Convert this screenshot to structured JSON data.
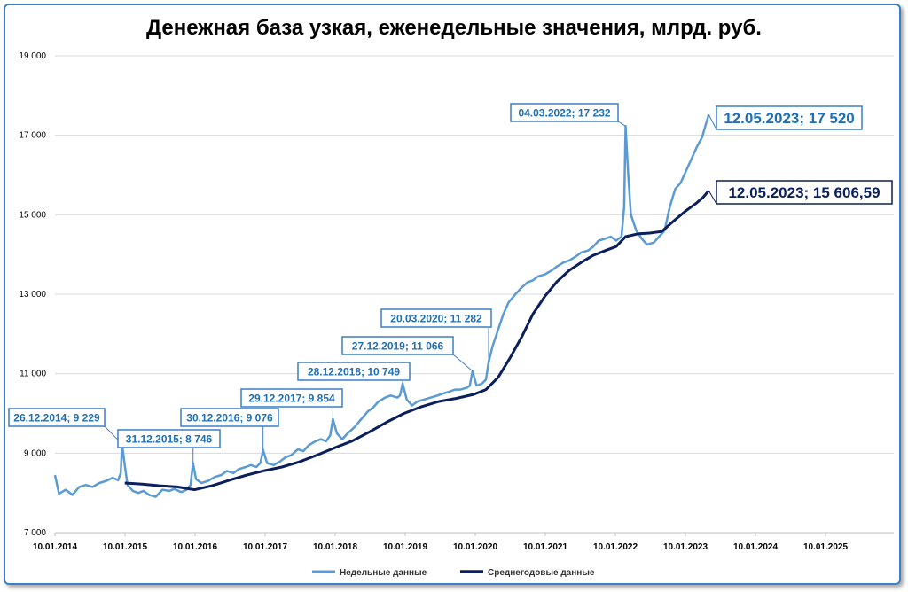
{
  "chart_data": {
    "type": "line",
    "title": "Денежная база узкая, еженедельные значения, млрд. руб.",
    "xlabel": "",
    "ylabel": "",
    "x_ticks": [
      "10.01.2014",
      "10.01.2015",
      "10.01.2016",
      "10.01.2017",
      "10.01.2018",
      "10.01.2019",
      "10.01.2020",
      "10.01.2021",
      "10.01.2022",
      "10.01.2023",
      "10.01.2024",
      "10.01.2025"
    ],
    "y_ticks": [
      "7 000",
      "9 000",
      "11 000",
      "13 000",
      "15 000",
      "17 000",
      "19 000"
    ],
    "ylim": [
      7000,
      19000
    ],
    "xlim": [
      "2014-01-10",
      "2025-12-31"
    ],
    "grid": "horizontal",
    "legend_position": "bottom",
    "series": [
      {
        "name": "Недельные данные",
        "color": "#5b9bd5",
        "points": [
          [
            "2014-01-10",
            8450
          ],
          [
            "2014-01-31",
            7980
          ],
          [
            "2014-03-07",
            8080
          ],
          [
            "2014-04-11",
            7950
          ],
          [
            "2014-05-16",
            8150
          ],
          [
            "2014-06-20",
            8200
          ],
          [
            "2014-07-25",
            8150
          ],
          [
            "2014-08-29",
            8250
          ],
          [
            "2014-10-03",
            8300
          ],
          [
            "2014-11-07",
            8380
          ],
          [
            "2014-12-05",
            8320
          ],
          [
            "2014-12-19",
            8500
          ],
          [
            "2014-12-26",
            9229
          ],
          [
            "2015-01-09",
            8700
          ],
          [
            "2015-01-23",
            8200
          ],
          [
            "2015-02-20",
            8050
          ],
          [
            "2015-03-20",
            8000
          ],
          [
            "2015-04-17",
            8050
          ],
          [
            "2015-05-15",
            7950
          ],
          [
            "2015-06-19",
            7900
          ],
          [
            "2015-07-24",
            8080
          ],
          [
            "2015-08-28",
            8050
          ],
          [
            "2015-09-25",
            8100
          ],
          [
            "2015-10-30",
            8020
          ],
          [
            "2015-11-27",
            8080
          ],
          [
            "2015-12-18",
            8200
          ],
          [
            "2015-12-31",
            8746
          ],
          [
            "2016-01-15",
            8350
          ],
          [
            "2016-02-12",
            8250
          ],
          [
            "2016-03-18",
            8300
          ],
          [
            "2016-04-22",
            8400
          ],
          [
            "2016-05-27",
            8450
          ],
          [
            "2016-06-24",
            8550
          ],
          [
            "2016-07-29",
            8500
          ],
          [
            "2016-08-26",
            8600
          ],
          [
            "2016-09-30",
            8650
          ],
          [
            "2016-10-28",
            8700
          ],
          [
            "2016-11-25",
            8650
          ],
          [
            "2016-12-16",
            8750
          ],
          [
            "2016-12-30",
            9076
          ],
          [
            "2017-01-20",
            8750
          ],
          [
            "2017-02-24",
            8700
          ],
          [
            "2017-03-31",
            8800
          ],
          [
            "2017-04-28",
            8900
          ],
          [
            "2017-05-26",
            8950
          ],
          [
            "2017-06-30",
            9100
          ],
          [
            "2017-07-28",
            9050
          ],
          [
            "2017-08-25",
            9200
          ],
          [
            "2017-09-29",
            9300
          ],
          [
            "2017-10-27",
            9350
          ],
          [
            "2017-11-24",
            9300
          ],
          [
            "2017-12-15",
            9450
          ],
          [
            "2017-12-29",
            9854
          ],
          [
            "2018-01-19",
            9500
          ],
          [
            "2018-02-16",
            9350
          ],
          [
            "2018-03-16",
            9500
          ],
          [
            "2018-04-20",
            9650
          ],
          [
            "2018-05-25",
            9850
          ],
          [
            "2018-06-29",
            10050
          ],
          [
            "2018-07-27",
            10150
          ],
          [
            "2018-08-24",
            10300
          ],
          [
            "2018-09-28",
            10400
          ],
          [
            "2018-10-26",
            10450
          ],
          [
            "2018-11-30",
            10400
          ],
          [
            "2018-12-14",
            10450
          ],
          [
            "2018-12-28",
            10749
          ],
          [
            "2019-01-18",
            10350
          ],
          [
            "2019-02-15",
            10200
          ],
          [
            "2019-03-15",
            10300
          ],
          [
            "2019-04-19",
            10350
          ],
          [
            "2019-05-24",
            10400
          ],
          [
            "2019-06-28",
            10450
          ],
          [
            "2019-07-26",
            10500
          ],
          [
            "2019-08-30",
            10550
          ],
          [
            "2019-09-27",
            10600
          ],
          [
            "2019-10-25",
            10600
          ],
          [
            "2019-11-29",
            10650
          ],
          [
            "2019-12-13",
            10700
          ],
          [
            "2019-12-27",
            11066
          ],
          [
            "2020-01-17",
            10700
          ],
          [
            "2020-02-14",
            10750
          ],
          [
            "2020-03-06",
            10850
          ],
          [
            "2020-03-20",
            11282
          ],
          [
            "2020-04-10",
            11700
          ],
          [
            "2020-05-08",
            12100
          ],
          [
            "2020-06-05",
            12500
          ],
          [
            "2020-07-03",
            12800
          ],
          [
            "2020-08-07",
            13000
          ],
          [
            "2020-09-04",
            13150
          ],
          [
            "2020-10-09",
            13300
          ],
          [
            "2020-11-06",
            13350
          ],
          [
            "2020-12-04",
            13450
          ],
          [
            "2021-01-08",
            13500
          ],
          [
            "2021-02-12",
            13600
          ],
          [
            "2021-03-12",
            13700
          ],
          [
            "2021-04-16",
            13800
          ],
          [
            "2021-05-14",
            13850
          ],
          [
            "2021-06-18",
            13950
          ],
          [
            "2021-07-16",
            14050
          ],
          [
            "2021-08-20",
            14100
          ],
          [
            "2021-09-17",
            14200
          ],
          [
            "2021-10-15",
            14350
          ],
          [
            "2021-11-19",
            14400
          ],
          [
            "2021-12-17",
            14450
          ],
          [
            "2022-01-14",
            14350
          ],
          [
            "2022-02-11",
            14450
          ],
          [
            "2022-02-25",
            15200
          ],
          [
            "2022-03-04",
            17232
          ],
          [
            "2022-03-18",
            16000
          ],
          [
            "2022-04-01",
            15000
          ],
          [
            "2022-04-29",
            14600
          ],
          [
            "2022-05-27",
            14400
          ],
          [
            "2022-06-24",
            14250
          ],
          [
            "2022-07-29",
            14300
          ],
          [
            "2022-08-26",
            14450
          ],
          [
            "2022-09-23",
            14600
          ],
          [
            "2022-10-21",
            15200
          ],
          [
            "2022-11-18",
            15650
          ],
          [
            "2022-12-16",
            15800
          ],
          [
            "2023-01-13",
            16100
          ],
          [
            "2023-02-10",
            16400
          ],
          [
            "2023-03-10",
            16700
          ],
          [
            "2023-04-07",
            16950
          ],
          [
            "2023-04-28",
            17300
          ],
          [
            "2023-05-12",
            17520
          ]
        ],
        "annotations": [
          {
            "x": "2014-12-26",
            "y": 9229,
            "label": "26.12.2014; 9 229"
          },
          {
            "x": "2015-12-31",
            "y": 8746,
            "label": "31.12.2015; 8 746"
          },
          {
            "x": "2016-12-30",
            "y": 9076,
            "label": "30.12.2016; 9 076"
          },
          {
            "x": "2017-12-29",
            "y": 9854,
            "label": "29.12.2017; 9 854"
          },
          {
            "x": "2018-12-28",
            "y": 10749,
            "label": "28.12.2018; 10 749"
          },
          {
            "x": "2019-12-27",
            "y": 11066,
            "label": "27.12.2019; 11 066"
          },
          {
            "x": "2020-03-20",
            "y": 11282,
            "label": "20.03.2020; 11 282"
          },
          {
            "x": "2022-03-04",
            "y": 17232,
            "label": "04.03.2022; 17 232"
          },
          {
            "x": "2023-05-12",
            "y": 17520,
            "label": "12.05.2023; 17 520"
          }
        ]
      },
      {
        "name": "Среднегодовые данные",
        "color": "#0b1f5c",
        "points": [
          [
            "2015-01-09",
            8250
          ],
          [
            "2015-04-10",
            8220
          ],
          [
            "2015-07-10",
            8180
          ],
          [
            "2015-10-09",
            8150
          ],
          [
            "2016-01-08",
            8080
          ],
          [
            "2016-04-08",
            8180
          ],
          [
            "2016-07-08",
            8320
          ],
          [
            "2016-10-07",
            8450
          ],
          [
            "2017-01-06",
            8560
          ],
          [
            "2017-04-07",
            8650
          ],
          [
            "2017-07-07",
            8780
          ],
          [
            "2017-10-06",
            8950
          ],
          [
            "2018-01-05",
            9130
          ],
          [
            "2018-04-06",
            9300
          ],
          [
            "2018-07-06",
            9530
          ],
          [
            "2018-10-05",
            9780
          ],
          [
            "2019-01-04",
            10000
          ],
          [
            "2019-04-05",
            10170
          ],
          [
            "2019-07-05",
            10300
          ],
          [
            "2019-10-04",
            10380
          ],
          [
            "2020-01-03",
            10480
          ],
          [
            "2020-03-06",
            10600
          ],
          [
            "2020-05-08",
            10900
          ],
          [
            "2020-07-10",
            11400
          ],
          [
            "2020-09-11",
            11950
          ],
          [
            "2020-11-06",
            12500
          ],
          [
            "2021-01-08",
            12950
          ],
          [
            "2021-03-12",
            13320
          ],
          [
            "2021-05-14",
            13600
          ],
          [
            "2021-07-16",
            13800
          ],
          [
            "2021-09-17",
            13980
          ],
          [
            "2021-11-19",
            14100
          ],
          [
            "2022-01-14",
            14200
          ],
          [
            "2022-03-04",
            14450
          ],
          [
            "2022-05-06",
            14520
          ],
          [
            "2022-07-08",
            14540
          ],
          [
            "2022-09-09",
            14580
          ],
          [
            "2022-11-11",
            14850
          ],
          [
            "2023-01-13",
            15100
          ],
          [
            "2023-03-10",
            15300
          ],
          [
            "2023-04-14",
            15450
          ],
          [
            "2023-05-12",
            15606.59
          ]
        ],
        "annotations": [
          {
            "x": "2023-05-12",
            "y": 15606.59,
            "label": "12.05.2023; 15 606,59"
          }
        ]
      }
    ]
  }
}
